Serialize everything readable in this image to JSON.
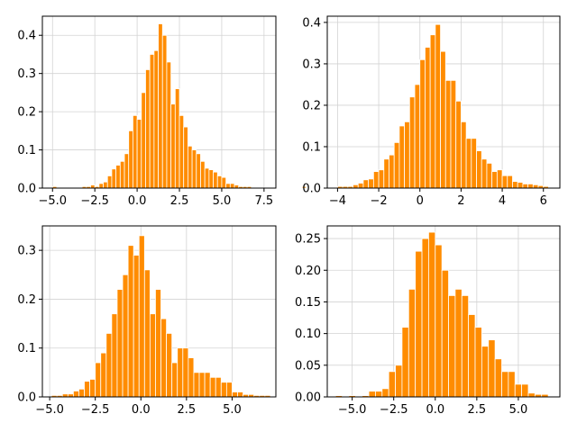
{
  "figure": {
    "background": "#ffffff"
  },
  "chart_data": [
    {
      "type": "bar",
      "histogram": true,
      "color": "#ff8c00",
      "grid": true,
      "xlim": [
        -5.6,
        8.2
      ],
      "ylim": [
        0,
        0.45
      ],
      "xticks": [
        -5.0,
        -2.5,
        0.0,
        2.5,
        5.0,
        7.5
      ],
      "xtick_labels": [
        "−5.0",
        "−2.5",
        "0.0",
        "2.5",
        "5.0",
        "7.5"
      ],
      "yticks": [
        0.0,
        0.1,
        0.2,
        0.3,
        0.4
      ],
      "ytick_labels": [
        "0.0",
        "0.1",
        "0.2",
        "0.3",
        "0.4"
      ],
      "bin_start": -5.0,
      "bin_width": 0.25,
      "values": [
        0.004,
        0,
        0,
        0,
        0,
        0,
        0,
        0.004,
        0.004,
        0.008,
        0.004,
        0.012,
        0.016,
        0.032,
        0.05,
        0.06,
        0.07,
        0.09,
        0.15,
        0.19,
        0.18,
        0.25,
        0.31,
        0.35,
        0.36,
        0.43,
        0.4,
        0.33,
        0.22,
        0.26,
        0.19,
        0.16,
        0.11,
        0.1,
        0.09,
        0.07,
        0.052,
        0.048,
        0.042,
        0.032,
        0.028,
        0.012,
        0.012,
        0.008,
        0.004,
        0.004,
        0.004,
        0,
        0,
        0,
        0,
        0,
        0,
        0,
        0,
        0,
        0,
        0,
        0,
        0.004
      ]
    },
    {
      "type": "bar",
      "histogram": true,
      "color": "#ff8c00",
      "grid": true,
      "xlim": [
        -4.5,
        6.8
      ],
      "ylim": [
        0,
        0.415
      ],
      "xticks": [
        -4,
        -2,
        0,
        2,
        4,
        6
      ],
      "xtick_labels": [
        "−4",
        "−2",
        "0",
        "2",
        "4",
        "6"
      ],
      "yticks": [
        0.0,
        0.1,
        0.2,
        0.3,
        0.4
      ],
      "ytick_labels": [
        "0.0",
        "0.1",
        "0.2",
        "0.3",
        "0.4"
      ],
      "bin_start": -4.0,
      "bin_width": 0.25,
      "values": [
        0.004,
        0.004,
        0.004,
        0.008,
        0.012,
        0.02,
        0.022,
        0.04,
        0.044,
        0.07,
        0.08,
        0.11,
        0.15,
        0.16,
        0.22,
        0.25,
        0.31,
        0.34,
        0.37,
        0.395,
        0.33,
        0.26,
        0.26,
        0.21,
        0.16,
        0.12,
        0.12,
        0.09,
        0.07,
        0.06,
        0.04,
        0.044,
        0.03,
        0.03,
        0.016,
        0.014,
        0.01,
        0.01,
        0.008,
        0.006,
        0.004
      ]
    },
    {
      "type": "bar",
      "histogram": true,
      "color": "#ff8c00",
      "grid": true,
      "xlim": [
        -5.4,
        7.4
      ],
      "ylim": [
        0,
        0.35
      ],
      "xticks": [
        -5.0,
        -2.5,
        0.0,
        2.5,
        5.0
      ],
      "xtick_labels": [
        "−5.0",
        "−2.5",
        "0.0",
        "2.5",
        "5.0"
      ],
      "yticks": [
        0.0,
        0.1,
        0.2,
        0.3
      ],
      "ytick_labels": [
        "0.0",
        "0.1",
        "0.2",
        "0.3"
      ],
      "bin_start": -4.9,
      "bin_width": 0.3,
      "values": [
        0.003,
        0.003,
        0.006,
        0.006,
        0.012,
        0.016,
        0.032,
        0.036,
        0.07,
        0.09,
        0.13,
        0.17,
        0.22,
        0.25,
        0.31,
        0.29,
        0.33,
        0.26,
        0.17,
        0.22,
        0.16,
        0.13,
        0.07,
        0.1,
        0.1,
        0.08,
        0.05,
        0.05,
        0.05,
        0.04,
        0.04,
        0.03,
        0.03,
        0.01,
        0.01,
        0.005,
        0.005,
        0.003,
        0.003,
        0.003
      ]
    },
    {
      "type": "bar",
      "histogram": true,
      "color": "#ff8c00",
      "grid": true,
      "xlim": [
        -6.5,
        7.5
      ],
      "ylim": [
        0,
        0.27
      ],
      "xticks": [
        -5.0,
        -2.5,
        0.0,
        2.5,
        5.0
      ],
      "xtick_labels": [
        "−5.0",
        "−2.5",
        "0.0",
        "2.5",
        "5.0"
      ],
      "yticks": [
        0.0,
        0.05,
        0.1,
        0.15,
        0.2,
        0.25
      ],
      "ytick_labels": [
        "0.00",
        "0.05",
        "0.10",
        "0.15",
        "0.20",
        "0.25"
      ],
      "bin_start": -6.0,
      "bin_width": 0.4,
      "values": [
        0.002,
        0,
        0.002,
        0,
        0.002,
        0.009,
        0.009,
        0.013,
        0.04,
        0.05,
        0.11,
        0.17,
        0.23,
        0.25,
        0.26,
        0.24,
        0.2,
        0.16,
        0.17,
        0.16,
        0.13,
        0.11,
        0.08,
        0.09,
        0.06,
        0.04,
        0.04,
        0.02,
        0.02,
        0.006,
        0.004,
        0.004
      ]
    }
  ]
}
